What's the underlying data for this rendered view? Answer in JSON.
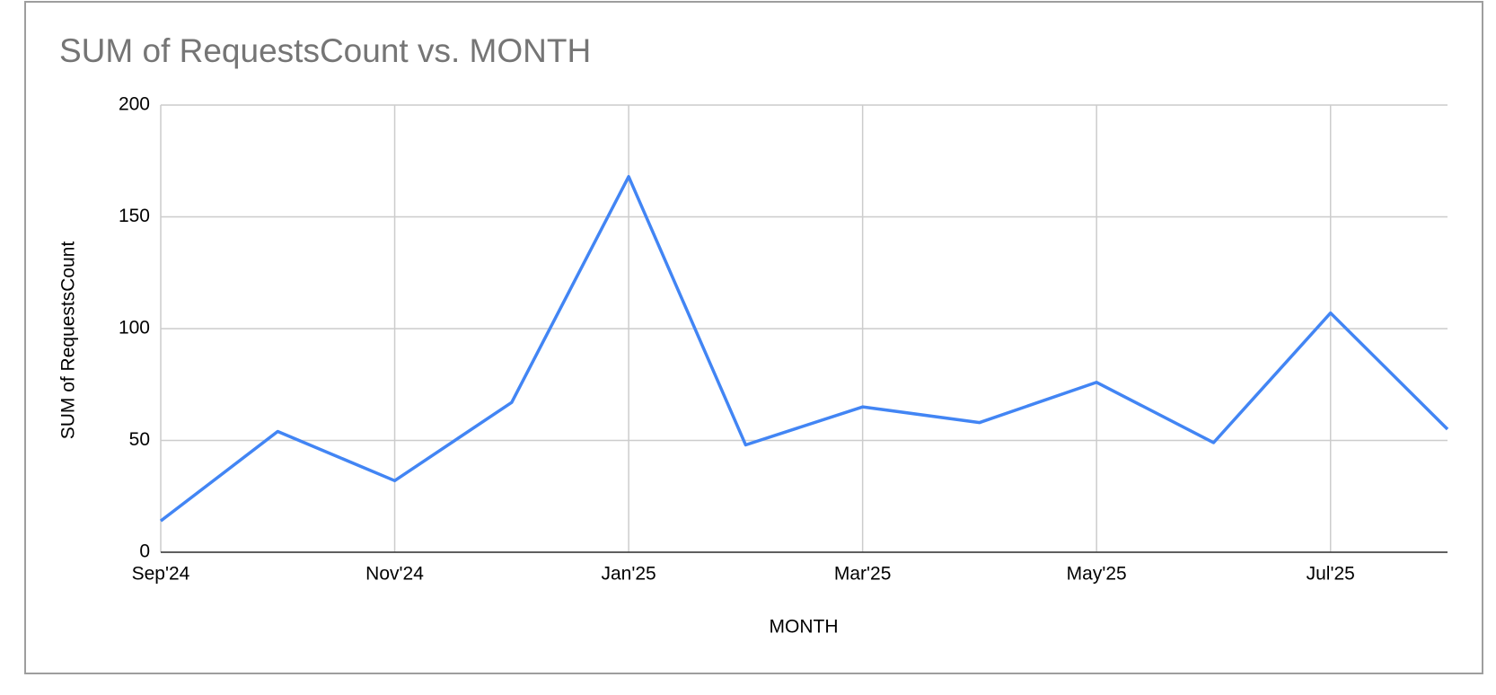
{
  "chart_data": {
    "type": "line",
    "title": "SUM of RequestsCount vs. MONTH",
    "x_label": "MONTH",
    "y_label": "SUM of RequestsCount",
    "categories": [
      "Sep'24",
      null,
      "Nov'24",
      null,
      "Jan'25",
      null,
      "Mar'25",
      null,
      "May'25",
      null,
      "Jul'25",
      null
    ],
    "series": [
      {
        "name": "SUM of RequestsCount",
        "color": "#4285f4",
        "values": [
          14,
          54,
          32,
          67,
          168,
          48,
          65,
          58,
          76,
          49,
          107,
          55
        ]
      }
    ],
    "ylim": [
      0,
      200
    ],
    "yticks": [
      0,
      50,
      100,
      150,
      200
    ],
    "grid": true
  }
}
